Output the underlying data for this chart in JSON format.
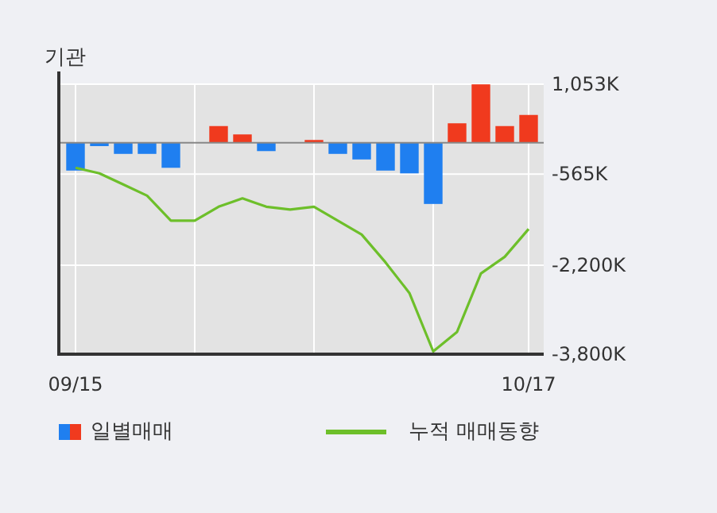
{
  "chart_data": {
    "type": "bar",
    "title": "기관",
    "categories": [
      "09/15",
      null,
      null,
      null,
      null,
      null,
      null,
      null,
      null,
      null,
      null,
      null,
      null,
      null,
      null,
      null,
      null,
      null,
      null,
      "10/17"
    ],
    "series": [
      {
        "name": "일별매매",
        "colors": [
          "#1f7ff0",
          "#1f7ff0",
          "#1f7ff0",
          "#1f7ff0",
          "#1f7ff0",
          "#1f7ff0",
          "#f03a1e",
          "#f03a1e",
          "#1f7ff0",
          "#1f7ff0",
          "#f03a1e",
          "#1f7ff0",
          "#1f7ff0",
          "#1f7ff0",
          "#1f7ff0",
          "#1f7ff0",
          "#f03a1e",
          "#f03a1e",
          "#f03a1e",
          "#f03a1e"
        ],
        "values": [
          -500,
          -60,
          -200,
          -200,
          -450,
          0,
          300,
          150,
          -150,
          0,
          50,
          -200,
          -300,
          -500,
          -550,
          -1100,
          350,
          1050,
          300,
          500
        ]
      },
      {
        "type": "line",
        "name": "누적 매매동향",
        "color": "#6dbf2a",
        "values": [
          -450,
          -550,
          -750,
          -950,
          -1400,
          -1400,
          -1150,
          -1000,
          -1150,
          -1200,
          -1150,
          -1400,
          -1650,
          -2150,
          -2700,
          -3750,
          -3400,
          -2350,
          -2050,
          -1550
        ]
      }
    ],
    "ylim": [
      -3800,
      1053
    ],
    "yticks": [
      {
        "value": 1053,
        "label": "1,053K"
      },
      {
        "value": -565,
        "label": "-565K"
      },
      {
        "value": -2200,
        "label": "-2,200K"
      },
      {
        "value": -3800,
        "label": "-3,800K"
      }
    ],
    "grid": true,
    "legend": "bottom",
    "marker": "none",
    "line_style": "solid"
  }
}
